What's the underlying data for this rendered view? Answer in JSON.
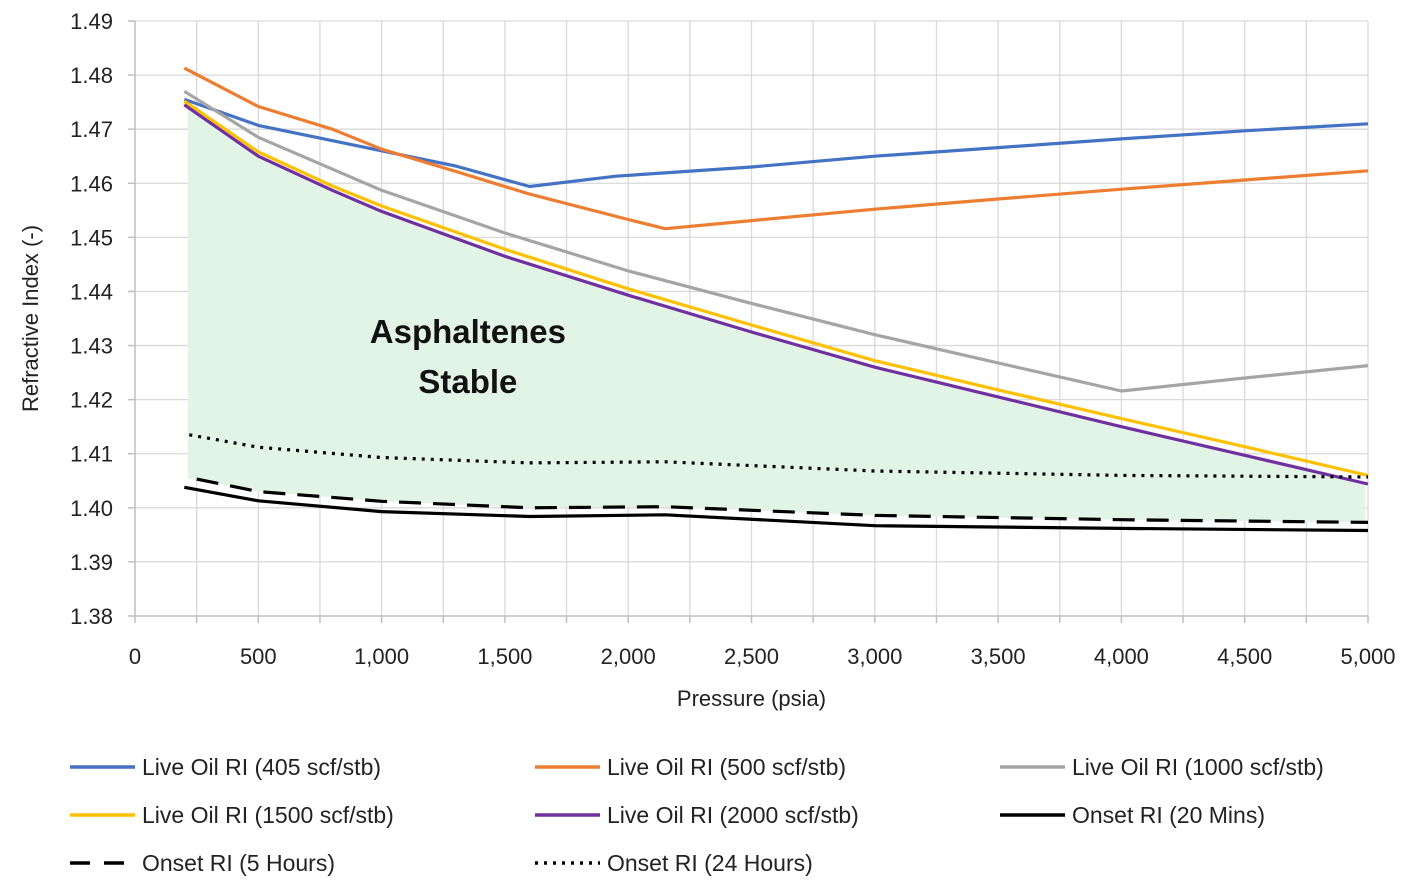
{
  "chart_data": {
    "type": "line",
    "title": "",
    "xlabel": "Pressure (psia)",
    "ylabel": "Refractive Index (-)",
    "xlim": [
      0,
      5000
    ],
    "ylim": [
      1.38,
      1.49
    ],
    "x_ticks": [
      0,
      500,
      1000,
      1500,
      2000,
      2500,
      3000,
      3500,
      4000,
      4500,
      5000
    ],
    "x_tick_labels": [
      "0",
      "500",
      "1,000",
      "1,500",
      "2,000",
      "2,500",
      "3,000",
      "3,500",
      "4,000",
      "4,500",
      "5,000"
    ],
    "y_ticks": [
      1.38,
      1.39,
      1.4,
      1.41,
      1.42,
      1.43,
      1.44,
      1.45,
      1.46,
      1.47,
      1.48,
      1.49
    ],
    "y_tick_labels": [
      "1.38",
      "1.39",
      "1.40",
      "1.41",
      "1.42",
      "1.43",
      "1.44",
      "1.45",
      "1.46",
      "1.47",
      "1.48",
      "1.49"
    ],
    "grid": true,
    "legend_position": "bottom",
    "annotation": {
      "lines": [
        "Asphaltenes",
        "Stable"
      ],
      "x": 1350,
      "y": 1.4305
    },
    "stable_region": {
      "color": "#e2f4e6",
      "x_start": 215,
      "x_end": 5000
    },
    "series": [
      {
        "name": "Live Oil RI (405 scf/stb)",
        "color": "#4472c4",
        "style": "solid",
        "points": [
          [
            200,
            1.4755
          ],
          [
            500,
            1.4707
          ],
          [
            1000,
            1.466
          ],
          [
            1300,
            1.4632
          ],
          [
            1600,
            1.4594
          ],
          [
            1950,
            1.4613
          ],
          [
            2500,
            1.463
          ],
          [
            3000,
            1.465
          ],
          [
            3500,
            1.4666
          ],
          [
            4000,
            1.4682
          ],
          [
            4500,
            1.4697
          ],
          [
            5000,
            1.471
          ]
        ]
      },
      {
        "name": "Live Oil RI (500 scf/stb)",
        "color": "#ed7d31",
        "style": "solid",
        "points": [
          [
            200,
            1.4813
          ],
          [
            500,
            1.4742
          ],
          [
            800,
            1.47
          ],
          [
            1000,
            1.4663
          ],
          [
            1300,
            1.4622
          ],
          [
            1600,
            1.458
          ],
          [
            2000,
            1.4533
          ],
          [
            2150,
            1.4516
          ],
          [
            2500,
            1.4531
          ],
          [
            3000,
            1.4552
          ],
          [
            3500,
            1.4571
          ],
          [
            4000,
            1.4589
          ],
          [
            4500,
            1.4606
          ],
          [
            5000,
            1.4623
          ]
        ]
      },
      {
        "name": "Live Oil RI (1000 scf/stb)",
        "color": "#a5a5a5",
        "style": "solid",
        "points": [
          [
            200,
            1.477
          ],
          [
            500,
            1.4685
          ],
          [
            1000,
            1.4587
          ],
          [
            1500,
            1.4508
          ],
          [
            2000,
            1.4438
          ],
          [
            2500,
            1.4378
          ],
          [
            3000,
            1.432
          ],
          [
            3500,
            1.4268
          ],
          [
            4000,
            1.4216
          ],
          [
            4500,
            1.424
          ],
          [
            5000,
            1.4263
          ]
        ]
      },
      {
        "name": "Live Oil RI (1500 scf/stb)",
        "color": "#ffc000",
        "style": "solid",
        "points": [
          [
            200,
            1.4752
          ],
          [
            500,
            1.4658
          ],
          [
            800,
            1.4595
          ],
          [
            1000,
            1.4558
          ],
          [
            1500,
            1.4478
          ],
          [
            2000,
            1.4405
          ],
          [
            2500,
            1.4338
          ],
          [
            3000,
            1.4272
          ],
          [
            3500,
            1.4218
          ],
          [
            4000,
            1.4165
          ],
          [
            4500,
            1.4113
          ],
          [
            5000,
            1.406
          ]
        ]
      },
      {
        "name": "Live Oil RI (2000 scf/stb)",
        "color": "#7030a0",
        "style": "solid",
        "points": [
          [
            200,
            1.4745
          ],
          [
            500,
            1.465
          ],
          [
            800,
            1.4587
          ],
          [
            1000,
            1.4548
          ],
          [
            1500,
            1.4465
          ],
          [
            2000,
            1.4393
          ],
          [
            2500,
            1.4325
          ],
          [
            3000,
            1.426
          ],
          [
            3500,
            1.4205
          ],
          [
            4000,
            1.415
          ],
          [
            4500,
            1.4097
          ],
          [
            5000,
            1.4044
          ]
        ]
      },
      {
        "name": "Onset RI (20 Mins)",
        "color": "#000000",
        "style": "solid",
        "points": [
          [
            200,
            1.4038
          ],
          [
            500,
            1.4013
          ],
          [
            1000,
            1.3993
          ],
          [
            1600,
            1.3984
          ],
          [
            2150,
            1.3987
          ],
          [
            3000,
            1.3967
          ],
          [
            4000,
            1.3962
          ],
          [
            5000,
            1.3958
          ]
        ]
      },
      {
        "name": "Onset RI (5 Hours)",
        "color": "#000000",
        "style": "dashed",
        "points": [
          [
            250,
            1.4053
          ],
          [
            500,
            1.403
          ],
          [
            1000,
            1.4012
          ],
          [
            1600,
            1.4
          ],
          [
            2150,
            1.4002
          ],
          [
            3000,
            1.3986
          ],
          [
            4000,
            1.3978
          ],
          [
            5000,
            1.3973
          ]
        ]
      },
      {
        "name": "Onset RI (24 Hours)",
        "color": "#000000",
        "style": "dotted",
        "points": [
          [
            220,
            1.4135
          ],
          [
            500,
            1.4112
          ],
          [
            1000,
            1.4093
          ],
          [
            1600,
            1.4083
          ],
          [
            2150,
            1.4085
          ],
          [
            3000,
            1.4068
          ],
          [
            4000,
            1.406
          ],
          [
            5000,
            1.4057
          ]
        ]
      }
    ]
  }
}
